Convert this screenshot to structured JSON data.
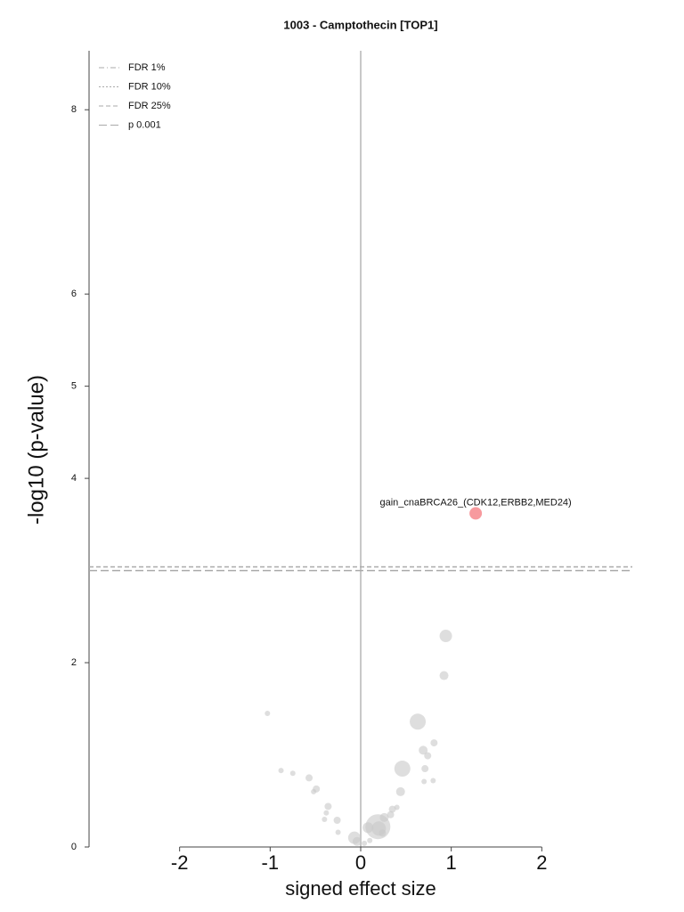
{
  "chart_data": {
    "type": "scatter",
    "title": "1003 - Camptothecin [TOP1]",
    "x_label": "signed effect size",
    "y_label": "-log10 (p-value)",
    "xlim": [
      -3,
      3
    ],
    "ylim": [
      0,
      8.64
    ],
    "xticks": [
      -2,
      -1,
      0,
      1,
      2
    ],
    "yticks": [
      0,
      2,
      4,
      5,
      6,
      8
    ],
    "thresholds": [
      {
        "name": "FDR 1%",
        "dash": "6,3,1,3",
        "value": null
      },
      {
        "name": "FDR 10%",
        "dash": "2,2",
        "value": null
      },
      {
        "name": "FDR 25%",
        "dash": "5,3",
        "value": 3.04
      },
      {
        "name": "p 0.001",
        "dash": "9,4",
        "value": 3.0
      }
    ],
    "series": [
      {
        "color": "#c8c8c8",
        "x": [
          0.94,
          0.92,
          -1.03,
          0.63,
          0.81,
          0.69,
          0.74,
          0.46,
          -0.88,
          -0.75,
          -0.57,
          0.71,
          0.8,
          0.7,
          -0.49,
          -0.52,
          0.44,
          -0.36,
          0.4,
          0.35,
          0.33,
          -0.38,
          -0.26,
          -0.4,
          0.26,
          0.19,
          0.2,
          0.08,
          0.24,
          -0.25,
          -0.07,
          -0.04,
          0.04,
          0.1
        ],
        "values": [
          2.29,
          1.86,
          1.45,
          1.36,
          1.13,
          1.05,
          0.99,
          0.85,
          0.83,
          0.8,
          0.75,
          0.85,
          0.72,
          0.71,
          0.63,
          0.6,
          0.6,
          0.44,
          0.43,
          0.41,
          0.35,
          0.37,
          0.29,
          0.3,
          0.32,
          0.22,
          0.2,
          0.21,
          0.15,
          0.16,
          0.1,
          0.06,
          0.04,
          0.07
        ],
        "sizes": [
          7,
          5,
          3,
          9,
          4,
          5,
          4,
          9,
          3,
          3,
          4,
          4,
          3,
          3,
          4,
          3,
          5,
          4,
          3,
          4,
          4,
          3,
          4,
          3,
          5,
          14,
          8,
          6,
          4,
          3,
          7,
          5,
          3,
          3
        ]
      },
      {
        "color": "#f79a9e",
        "x": [
          1.27
        ],
        "values": [
          3.62
        ],
        "sizes": [
          7
        ],
        "point_labels": [
          "gain_cnaBRCA26_(CDK12,ERBB2,MED24)"
        ]
      }
    ]
  }
}
